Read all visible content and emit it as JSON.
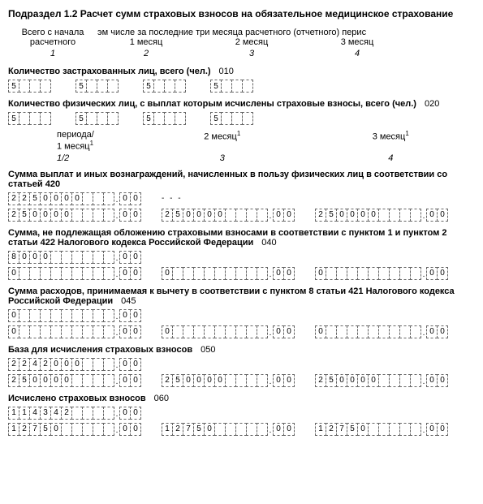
{
  "title": "Подраздел 1.2 Расчет сумм страховых взносов на обязательное медицинское страхование",
  "colHeaders": {
    "h1_l1": "Всего с начала",
    "h1_l2": "расчетного",
    "h2top": "эм числе за последние три месяца расчетного (отчетного) перис",
    "h2": "1 месяц",
    "h3": "2 месяц",
    "h4": "3 месяц",
    "i1": "1",
    "i2": "2",
    "i3": "3",
    "i4": "4"
  },
  "s010": {
    "label": "Количество застрахованных лиц, всего (чел.)",
    "code": "010",
    "v1": "5",
    "v2": "5",
    "v3": "5",
    "v4": "5"
  },
  "s020": {
    "label": "Количество физических лиц, с выплат которым исчислены страховые взносы, всего (чел.)",
    "code": "020",
    "v1": "5",
    "v2": "5",
    "v3": "5",
    "v4": "5"
  },
  "period": {
    "top": "периода/",
    "m1": "1 месяц",
    "m2": "2 месяц",
    "m3": "3 месяц",
    "sup": "1",
    "i12": "1/2",
    "i3": "3",
    "i4": "4"
  },
  "s030": {
    "label": "Сумма выплат и иных вознаграждений, начисленных в пользу физических лиц в соответствии со статьей 420",
    "r1_int": "2250000",
    "r1_dec": "00",
    "r2a_int": "250000",
    "r2a_dec": "00",
    "r2b_int": "250000",
    "r2b_dec": "00",
    "r2c_int": "250000",
    "r2c_dec": "00"
  },
  "s040": {
    "label": "Сумма, не подлежащая обложению страховыми взносами в соответствии с пунктом 1 и пунктом 2 статьи 422 Налогового кодекса Российской Федерации",
    "code": "040",
    "r1_int": "8000",
    "r1_dec": "00",
    "r2a_int": "0",
    "r2a_dec": "00",
    "r2b_int": "0",
    "r2b_dec": "00",
    "r2c_int": "0",
    "r2c_dec": "00"
  },
  "s045": {
    "label": "Сумма расходов, принимаемая к вычету в соответствии с пунктом 8 статьи 421 Налогового кодекса Российской Федерации",
    "code": "045",
    "r1_int": "0",
    "r1_dec": "00",
    "r2a_int": "0",
    "r2a_dec": "00",
    "r2b_int": "0",
    "r2b_dec": "00",
    "r2c_int": "0",
    "r2c_dec": "00"
  },
  "s050": {
    "label": "База для исчисления страховых взносов",
    "code": "050",
    "r1_int": "2242000",
    "r1_dec": "00",
    "r2a_int": "250000",
    "r2a_dec": "00",
    "r2b_int": "250000",
    "r2b_dec": "00",
    "r2c_int": "250000",
    "r2c_dec": "00"
  },
  "s060": {
    "label": "Исчислено страховых взносов",
    "code": "060",
    "r1_int": "114342",
    "r1_dec": "00",
    "r2a_int": "12750",
    "r2a_dec": "00",
    "r2b_int": "12750",
    "r2b_dec": "00",
    "r2c_int": "12750",
    "r2c_dec": "00"
  },
  "widths": {
    "small": 4,
    "wide": 10,
    "dec": 2
  }
}
